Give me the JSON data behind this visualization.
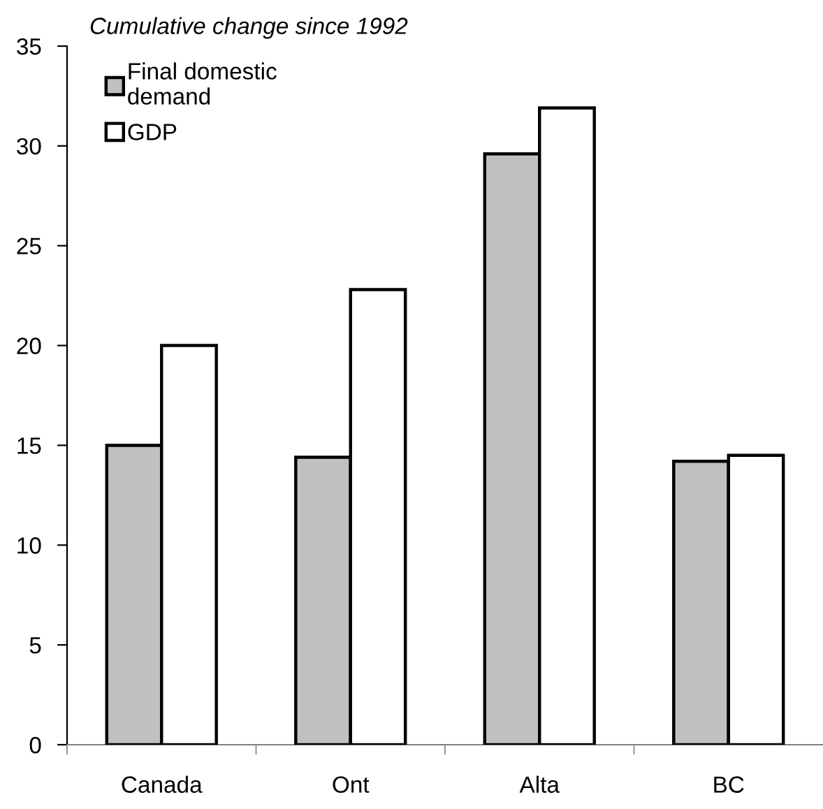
{
  "chart_data": {
    "type": "bar",
    "title": "Cumulative change since 1992",
    "categories": [
      "Canada",
      "Ont",
      "Alta",
      "BC"
    ],
    "series": [
      {
        "name": "Final domestic\ndemand",
        "color": "#c0c0c0",
        "values": [
          15.0,
          14.4,
          29.6,
          14.2
        ]
      },
      {
        "name": "GDP",
        "color": "#ffffff",
        "values": [
          20.0,
          22.8,
          31.9,
          14.5
        ]
      }
    ],
    "ylim": [
      0,
      35
    ],
    "yticks": [
      0,
      5,
      10,
      15,
      20,
      25,
      30,
      35
    ],
    "grid": false,
    "legend": "top left"
  }
}
